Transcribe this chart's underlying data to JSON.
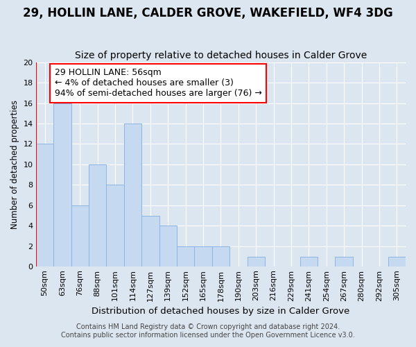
{
  "title1": "29, HOLLIN LANE, CALDER GROVE, WAKEFIELD, WF4 3DG",
  "title2": "Size of property relative to detached houses in Calder Grove",
  "xlabel": "Distribution of detached houses by size in Calder Grove",
  "ylabel": "Number of detached properties",
  "categories": [
    "50sqm",
    "63sqm",
    "76sqm",
    "88sqm",
    "101sqm",
    "114sqm",
    "127sqm",
    "139sqm",
    "152sqm",
    "165sqm",
    "178sqm",
    "190sqm",
    "203sqm",
    "216sqm",
    "229sqm",
    "241sqm",
    "254sqm",
    "267sqm",
    "280sqm",
    "292sqm",
    "305sqm"
  ],
  "values": [
    12,
    16,
    6,
    10,
    8,
    14,
    5,
    4,
    2,
    2,
    2,
    0,
    1,
    0,
    0,
    1,
    0,
    1,
    0,
    0,
    1
  ],
  "bar_color": "#c5d9f1",
  "bar_edge_color": "#8db4e2",
  "highlight_color": "#ff0000",
  "annotation_text": "29 HOLLIN LANE: 56sqm\n← 4% of detached houses are smaller (3)\n94% of semi-detached houses are larger (76) →",
  "annotation_box_color": "#ffffff",
  "annotation_box_edge": "#ff0000",
  "ylim": [
    0,
    20
  ],
  "yticks": [
    0,
    2,
    4,
    6,
    8,
    10,
    12,
    14,
    16,
    18,
    20
  ],
  "background_color": "#dce6f1",
  "plot_bg_color": "#dce6f1",
  "grid_color": "#ffffff",
  "footer1": "Contains HM Land Registry data © Crown copyright and database right 2024.",
  "footer2": "Contains public sector information licensed under the Open Government Licence v3.0.",
  "title1_fontsize": 12,
  "title2_fontsize": 10,
  "xlabel_fontsize": 9.5,
  "ylabel_fontsize": 8.5,
  "tick_fontsize": 8,
  "footer_fontsize": 7,
  "annotation_fontsize": 9
}
